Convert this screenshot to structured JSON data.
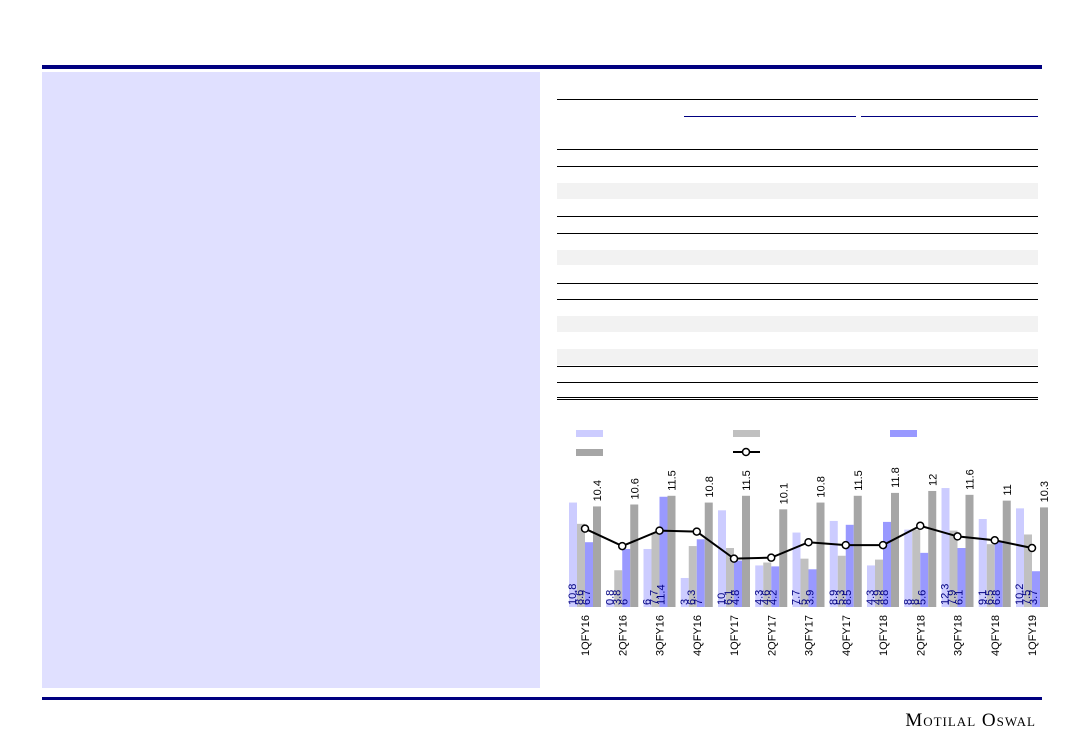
{
  "chart_data": {
    "type": "bar",
    "categories": [
      "1QFY16",
      "2QFY16",
      "3QFY16",
      "4QFY16",
      "1QFY17",
      "2QFY17",
      "3QFY17",
      "4QFY17",
      "1QFY18",
      "2QFY18",
      "3QFY18",
      "4QFY18",
      "1QFY19"
    ],
    "series": [
      {
        "color": "#ccccff",
        "values": [
          10.8,
          0.8,
          6.0,
          3.0,
          10.0,
          4.3,
          7.7,
          8.9,
          4.3,
          8.0,
          12.3,
          9.1,
          10.2
        ],
        "label_pos": "bottom"
      },
      {
        "color": "#c0c0c0",
        "values": [
          8.6,
          3.8,
          7.7,
          6.3,
          6.1,
          4.6,
          5.0,
          5.3,
          4.9,
          8.0,
          7.9,
          6.5,
          7.5
        ],
        "label_pos": "bottom"
      },
      {
        "color": "#9999ff",
        "values": [
          6.7,
          6.0,
          11.4,
          7.0,
          4.8,
          4.2,
          3.9,
          8.5,
          8.8,
          5.6,
          6.1,
          6.8,
          3.7
        ],
        "label_pos": "bottom"
      },
      {
        "color": "#a6a6a6",
        "values": [
          10.4,
          10.6,
          11.5,
          10.8,
          11.5,
          10.1,
          10.8,
          11.5,
          11.8,
          12.0,
          11.6,
          11.0,
          10.3
        ],
        "label_pos": "top"
      },
      {
        "type": "line",
        "color": "#000000",
        "values": [
          8.1,
          6.3,
          7.9,
          7.8,
          5.0,
          5.1,
          6.7,
          6.4,
          6.4,
          8.4,
          7.3,
          6.9,
          6.1
        ]
      }
    ]
  },
  "footer": {
    "brand": "Motilal Oswal"
  }
}
